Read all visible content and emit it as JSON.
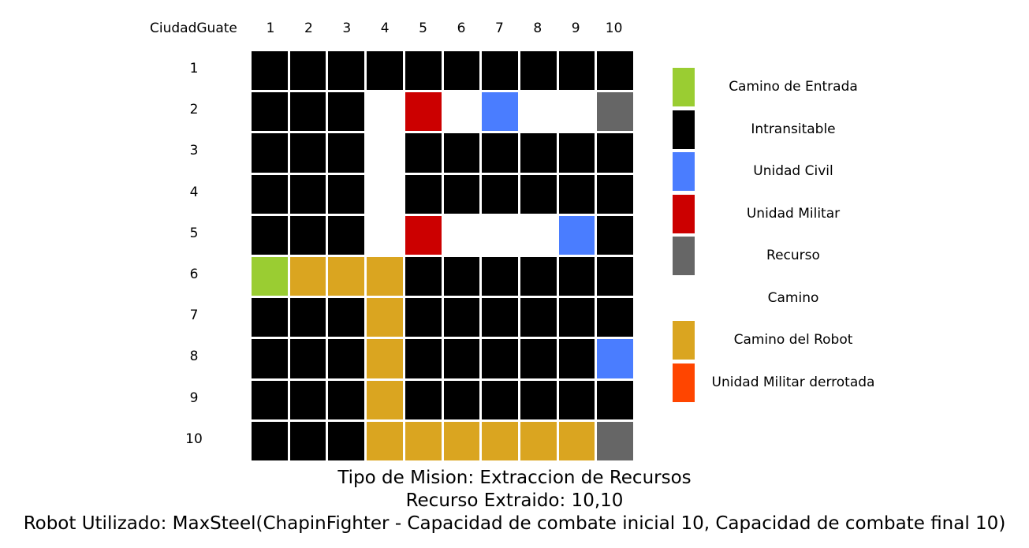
{
  "header": {
    "title": "CiudadGuate",
    "columns": [
      "1",
      "2",
      "3",
      "4",
      "5",
      "6",
      "7",
      "8",
      "9",
      "10"
    ]
  },
  "rows": [
    "1",
    "2",
    "3",
    "4",
    "5",
    "6",
    "7",
    "8",
    "9",
    "10"
  ],
  "colors": {
    "E": "#9acd32",
    "X": "#000000",
    "C": "#4a7dff",
    "M": "#cc0000",
    "R": "#666666",
    "P": "#ffffff",
    "B": "#daa520",
    "D": "#ff4500"
  },
  "grid": [
    [
      "X",
      "X",
      "X",
      "X",
      "X",
      "X",
      "X",
      "X",
      "X",
      "X"
    ],
    [
      "X",
      "X",
      "X",
      "P",
      "M",
      "P",
      "C",
      "P",
      "P",
      "R"
    ],
    [
      "X",
      "X",
      "X",
      "P",
      "X",
      "X",
      "X",
      "X",
      "X",
      "X"
    ],
    [
      "X",
      "X",
      "X",
      "P",
      "X",
      "X",
      "X",
      "X",
      "X",
      "X"
    ],
    [
      "X",
      "X",
      "X",
      "P",
      "M",
      "P",
      "P",
      "P",
      "C",
      "X"
    ],
    [
      "E",
      "B",
      "B",
      "B",
      "X",
      "X",
      "X",
      "X",
      "X",
      "X"
    ],
    [
      "X",
      "X",
      "X",
      "B",
      "X",
      "X",
      "X",
      "X",
      "X",
      "X"
    ],
    [
      "X",
      "X",
      "X",
      "B",
      "X",
      "X",
      "X",
      "X",
      "X",
      "C"
    ],
    [
      "X",
      "X",
      "X",
      "B",
      "X",
      "X",
      "X",
      "X",
      "X",
      "X"
    ],
    [
      "X",
      "X",
      "X",
      "B",
      "B",
      "B",
      "B",
      "B",
      "B",
      "R"
    ]
  ],
  "legend": [
    {
      "label": "Camino de Entrada",
      "color": "#9acd32"
    },
    {
      "label": "Intransitable",
      "color": "#000000"
    },
    {
      "label": "Unidad Civil",
      "color": "#4a7dff"
    },
    {
      "label": "Unidad Militar",
      "color": "#cc0000"
    },
    {
      "label": "Recurso",
      "color": "#666666"
    },
    {
      "label": "Camino",
      "color": "#ffffff"
    },
    {
      "label": "Camino del Robot",
      "color": "#daa520"
    },
    {
      "label": "Unidad Militar derrotada",
      "color": "#ff4500"
    }
  ],
  "footer": {
    "line1": "Tipo de Mision: Extraccion de Recursos",
    "line2": "Recurso Extraido: 10,10",
    "line3": "Robot Utilizado: MaxSteel(ChapinFighter - Capacidad de combate inicial 10, Capacidad de combate final 10)"
  }
}
